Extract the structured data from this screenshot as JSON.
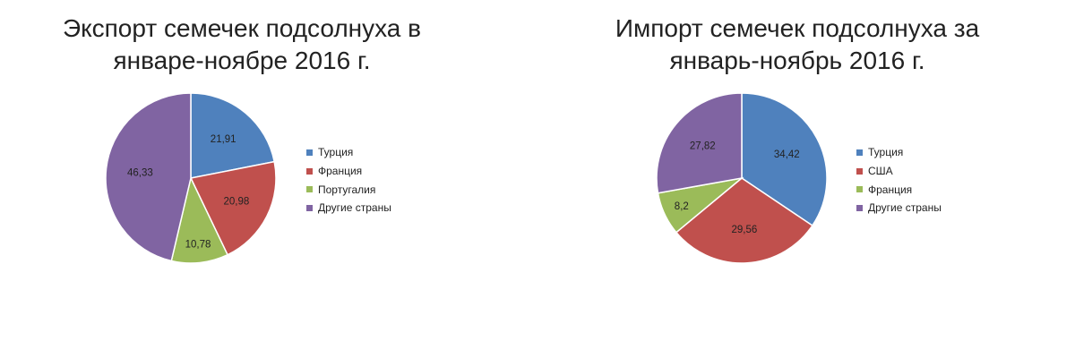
{
  "chart_data": [
    {
      "type": "pie",
      "title": "Экспорт семечек подсолнуха в январе-ноябре 2016 г.",
      "title_lines": [
        "Экспорт семечек подсолнуха в",
        "январе-ноябре 2016 г."
      ],
      "categories": [
        "Турция",
        "Франция",
        "Португалия",
        "Другие страны"
      ],
      "values": [
        21.91,
        20.98,
        10.78,
        46.33
      ],
      "value_labels": [
        "21,91",
        "20,98",
        "10,78",
        "46,33"
      ],
      "colors": [
        "#4f81bd",
        "#c0504d",
        "#9bbb59",
        "#8064a2"
      ],
      "legend_position": "right",
      "start": "12 o'clock",
      "direction": "clockwise"
    },
    {
      "type": "pie",
      "title": "Импорт семечек подсолнуха за январь-ноябрь 2016 г.",
      "title_lines": [
        "Импорт семечек подсолнуха за",
        "январь-ноябрь 2016 г."
      ],
      "categories": [
        "Турция",
        "США",
        "Франция",
        "Другие страны"
      ],
      "values": [
        34.42,
        29.56,
        8.2,
        27.82
      ],
      "value_labels": [
        "34,42",
        "29,56",
        "8,2",
        "27,82"
      ],
      "colors": [
        "#4f81bd",
        "#c0504d",
        "#9bbb59",
        "#8064a2"
      ],
      "legend_position": "right",
      "start": "12 o'clock",
      "direction": "clockwise"
    }
  ]
}
